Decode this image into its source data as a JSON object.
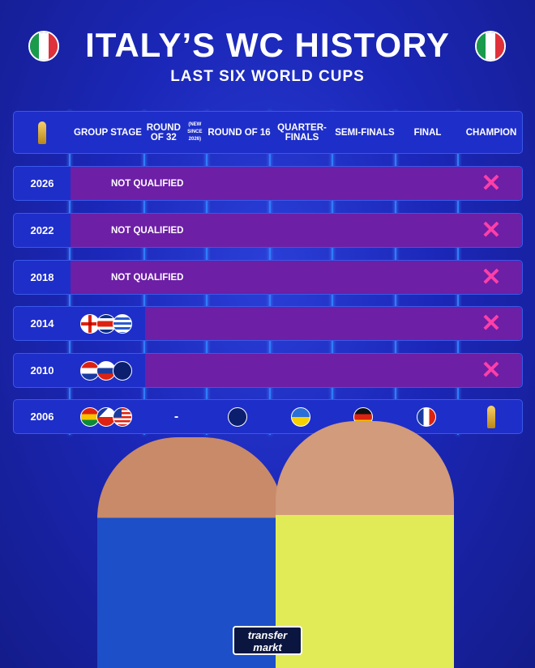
{
  "header": {
    "title": "ITALY’S WC HISTORY",
    "subtitle": "LAST SIX WORLD CUPS"
  },
  "colors": {
    "row_blue": "#1e2ec9",
    "not_reached": "#6d1fa6",
    "cross": "#ff3fa8",
    "grid_line": "#2f7cff"
  },
  "table": {
    "header_icon": "world-cup-trophy-icon",
    "columns": [
      {
        "label": "GROUP STAGE"
      },
      {
        "label": "ROUND OF 32",
        "note": "(NEW SINCE 2026)"
      },
      {
        "label": "ROUND OF 16"
      },
      {
        "label": "QUARTER-FINALS"
      },
      {
        "label": "SEMI-FINALS"
      },
      {
        "label": "FINAL"
      },
      {
        "label": "CHAMPION"
      }
    ],
    "rows": [
      {
        "year": "2026",
        "status": "NOT QUALIFIED",
        "champion": "cross-icon"
      },
      {
        "year": "2022",
        "status": "NOT QUALIFIED",
        "champion": "cross-icon"
      },
      {
        "year": "2018",
        "status": "NOT QUALIFIED",
        "champion": "cross-icon"
      },
      {
        "year": "2014",
        "group": [
          "England",
          "Costa Rica",
          "Uruguay"
        ],
        "eliminated_after": "GROUP STAGE",
        "champion": "cross-icon"
      },
      {
        "year": "2010",
        "group": [
          "Paraguay",
          "Slovakia",
          "New Zealand"
        ],
        "eliminated_after": "GROUP STAGE",
        "champion": "cross-icon"
      },
      {
        "year": "2006",
        "group": [
          "Ghana",
          "Czech Republic",
          "USA"
        ],
        "round_of_32": "-",
        "round_of_16": "Australia",
        "quarter_finals": "Ukraine",
        "semi_finals": "Germany",
        "final": "France",
        "champion": "world-cup-trophy-icon"
      }
    ]
  },
  "logo": {
    "text": "transfermarkt"
  }
}
